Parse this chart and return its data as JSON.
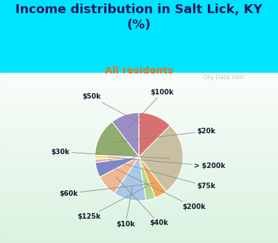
{
  "title": "Income distribution in Salt Lick, KY\n(%)",
  "subtitle": "All residents",
  "labels": [
    "$100k",
    "$20k",
    "> $200k",
    "$75k",
    "$200k",
    "$40k",
    "$10k",
    "$125k",
    "$60k",
    "$30k",
    "$50k"
  ],
  "values": [
    10.5,
    14.0,
    1.5,
    1.2,
    5.5,
    8.0,
    12.0,
    3.5,
    4.5,
    27.0,
    12.5
  ],
  "colors": [
    "#9b8ec4",
    "#8fad6e",
    "#f0e87a",
    "#f4a8b0",
    "#7b89c9",
    "#f0b890",
    "#a8c8e8",
    "#b0d88a",
    "#f0a855",
    "#c8c0a0",
    "#d97070"
  ],
  "bg_cyan": "#00e5ff",
  "watermark": "City-Data.com",
  "title_color": "#1a1a5e",
  "subtitle_color": "#e07820",
  "title_fontsize": 13,
  "subtitle_fontsize": 10,
  "label_fontsize": 7,
  "label_color": "#1a1a2e"
}
